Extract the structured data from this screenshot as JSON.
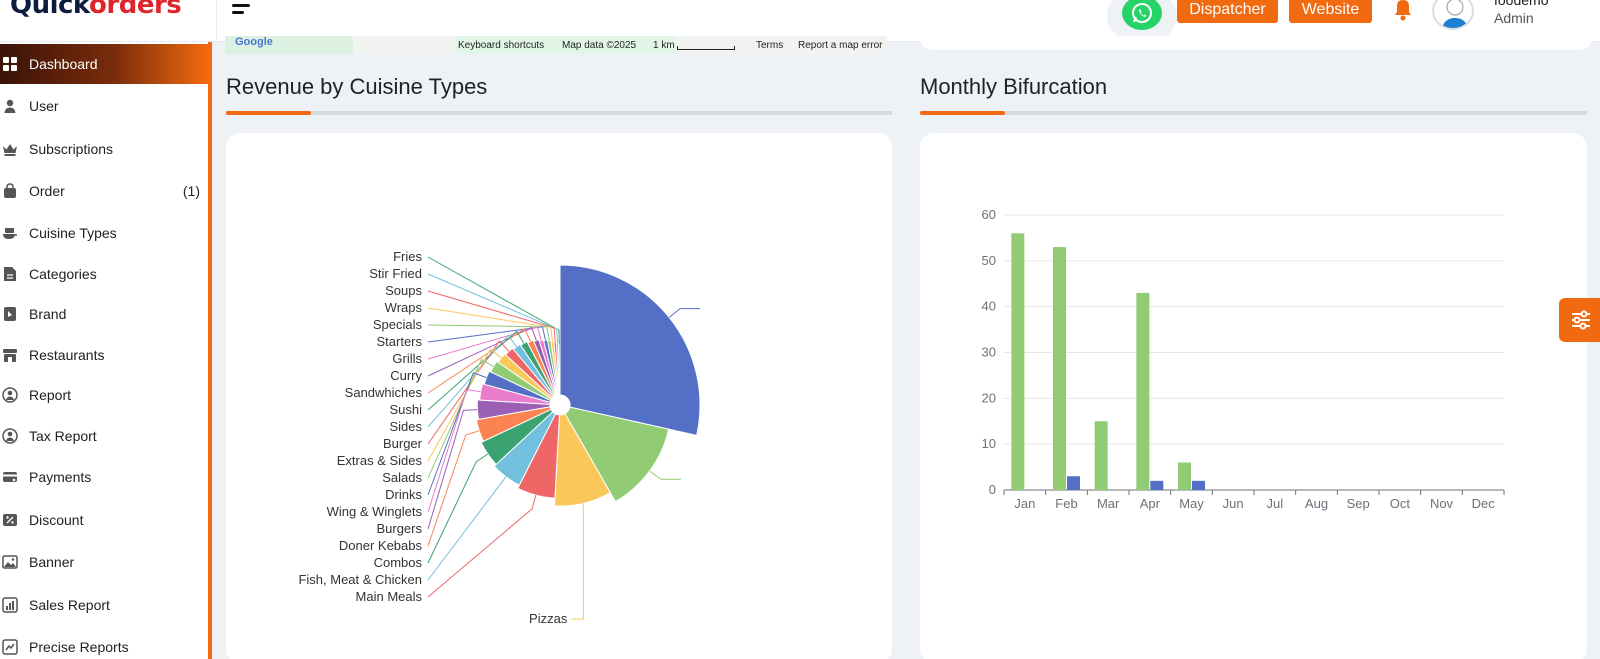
{
  "header": {
    "logo_prefix": "Quick",
    "logo_suffix": "orders",
    "dispatcher_label": "Dispatcher",
    "website_label": "Website",
    "user_name": "foodemo",
    "user_role": "Admin"
  },
  "map": {
    "attr_shortcuts": "Keyboard shortcuts",
    "attr_mapdata": "Map data ©2025",
    "attr_scale": "1 km",
    "attr_terms": "Terms",
    "attr_report": "Report a map error"
  },
  "sidebar": {
    "items": [
      {
        "label": "Dashboard",
        "icon": "grid-icon",
        "active": true
      },
      {
        "label": "User",
        "icon": "user-icon"
      },
      {
        "label": "Subscriptions",
        "icon": "crown-icon"
      },
      {
        "label": "Order",
        "icon": "bag-icon",
        "count": "(1)"
      },
      {
        "label": "Cuisine Types",
        "icon": "dish-icon"
      },
      {
        "label": "Categories",
        "icon": "category-icon"
      },
      {
        "label": "Brand",
        "icon": "tag-icon"
      },
      {
        "label": "Restaurants",
        "icon": "store-icon"
      },
      {
        "label": "Report",
        "icon": "report-icon"
      },
      {
        "label": "Tax Report",
        "icon": "tax-icon"
      },
      {
        "label": "Payments",
        "icon": "card-icon"
      },
      {
        "label": "Discount",
        "icon": "discount-icon"
      },
      {
        "label": "Banner",
        "icon": "image-icon"
      },
      {
        "label": "Sales Report",
        "icon": "chart-icon"
      },
      {
        "label": "Precise Reports",
        "icon": "precise-icon"
      }
    ]
  },
  "sections": {
    "revenue_title": "Revenue by Cuisine Types",
    "monthly_title": "Monthly Bifurcation"
  },
  "chart_data": [
    {
      "type": "pie",
      "title": "Revenue by Cuisine Types",
      "categories": [
        "Pizzas",
        "Fries",
        "Stir Fried",
        "Soups",
        "Wraps",
        "Specials",
        "Starters",
        "Grills",
        "Curry",
        "Sandwhiches",
        "Sushi",
        "Sides",
        "Burger",
        "Extras & Sides",
        "Salads",
        "Drinks",
        "Wing & Winglets",
        "Burgers",
        "Doner Kebabs",
        "Combos",
        "Fish, Meat & Chicken",
        "Main Meals"
      ],
      "slices": [
        {
          "label": "",
          "value": 28.0,
          "color": "#5470c6"
        },
        {
          "label": "",
          "value": 13.0,
          "color": "#91cc75"
        },
        {
          "label": "Pizzas",
          "value": 9.0,
          "color": "#fac858"
        },
        {
          "label": "Main Meals",
          "value": 6.5,
          "color": "#ee6666"
        },
        {
          "label": "Fish, Meat & Chicken",
          "value": 5.5,
          "color": "#73c0de"
        },
        {
          "label": "Combos",
          "value": 4.8,
          "color": "#3ba272"
        },
        {
          "label": "Doner Kebabs",
          "value": 4.2,
          "color": "#fc8452"
        },
        {
          "label": "Burgers",
          "value": 3.7,
          "color": "#9a60b4"
        },
        {
          "label": "Wing & Winglets",
          "value": 3.2,
          "color": "#ea7ccc"
        },
        {
          "label": "Drinks",
          "value": 2.8,
          "color": "#5470c6"
        },
        {
          "label": "Salads",
          "value": 2.5,
          "color": "#91cc75"
        },
        {
          "label": "Extras & Sides",
          "value": 2.2,
          "color": "#fac858"
        },
        {
          "label": "Burger",
          "value": 2.0,
          "color": "#ee6666"
        },
        {
          "label": "Sides",
          "value": 1.8,
          "color": "#73c0de"
        },
        {
          "label": "Sushi",
          "value": 1.6,
          "color": "#3ba272"
        },
        {
          "label": "Sandwhiches",
          "value": 1.4,
          "color": "#fc8452"
        },
        {
          "label": "Curry",
          "value": 1.2,
          "color": "#9a60b4"
        },
        {
          "label": "Grills",
          "value": 1.0,
          "color": "#ea7ccc"
        },
        {
          "label": "Starters",
          "value": 0.9,
          "color": "#5470c6"
        },
        {
          "label": "Specials",
          "value": 0.8,
          "color": "#91cc75"
        },
        {
          "label": "Wraps",
          "value": 0.7,
          "color": "#fac858"
        },
        {
          "label": "Soups",
          "value": 0.6,
          "color": "#ee6666"
        },
        {
          "label": "Stir Fried",
          "value": 0.5,
          "color": "#73c0de"
        },
        {
          "label": "Fries",
          "value": 0.4,
          "color": "#3ba272"
        }
      ]
    },
    {
      "type": "bar",
      "title": "Monthly Bifurcation",
      "categories": [
        "Jan",
        "Feb",
        "Mar",
        "Apr",
        "May",
        "Jun",
        "Jul",
        "Aug",
        "Sep",
        "Oct",
        "Nov",
        "Dec"
      ],
      "series": [
        {
          "values": [
            0,
            3,
            0,
            2,
            2,
            0,
            0,
            0,
            0,
            0,
            0,
            0
          ],
          "color": "#5470c6"
        },
        {
          "values": [
            56,
            53,
            15,
            43,
            6,
            0,
            0,
            0,
            0,
            0,
            0,
            0
          ],
          "color": "#91cc75"
        }
      ],
      "yticks": [
        0,
        10,
        20,
        30,
        40,
        50,
        60
      ],
      "ylim": [
        0,
        60
      ],
      "grid": true
    }
  ]
}
